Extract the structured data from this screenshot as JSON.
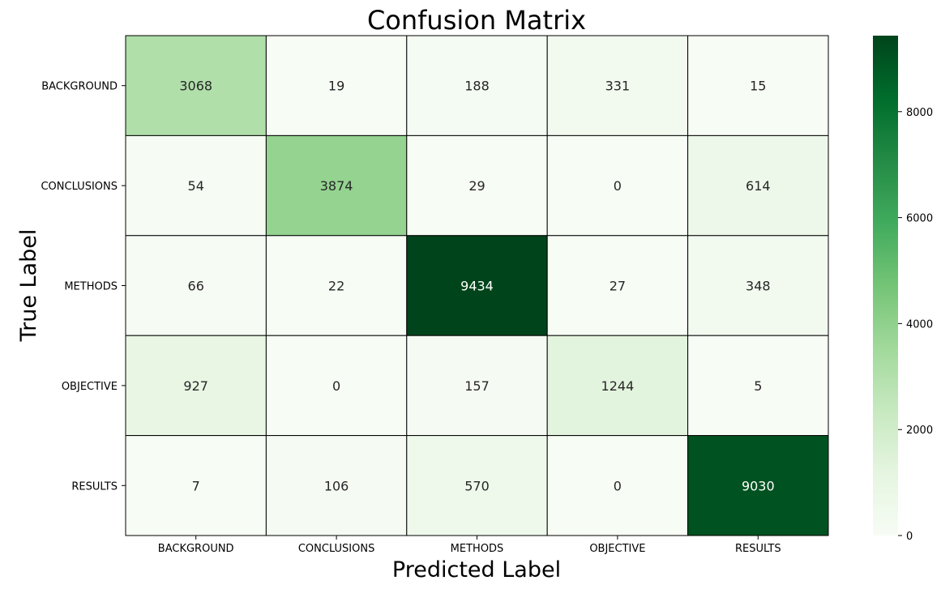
{
  "chart_data": {
    "type": "heatmap",
    "title": "Confusion Matrix",
    "xlabel": "Predicted Label",
    "ylabel": "True Label",
    "x_categories": [
      "BACKGROUND",
      "CONCLUSIONS",
      "METHODS",
      "OBJECTIVE",
      "RESULTS"
    ],
    "y_categories": [
      "BACKGROUND",
      "CONCLUSIONS",
      "METHODS",
      "OBJECTIVE",
      "RESULTS"
    ],
    "values": [
      [
        3068,
        19,
        188,
        331,
        15
      ],
      [
        54,
        3874,
        29,
        0,
        614
      ],
      [
        66,
        22,
        9434,
        27,
        348
      ],
      [
        927,
        0,
        157,
        1244,
        5
      ],
      [
        7,
        106,
        570,
        0,
        9030
      ]
    ],
    "colormap": "Greens",
    "vmin": 0,
    "vmax": 9434,
    "colorbar_ticks": [
      0,
      2000,
      4000,
      6000,
      8000
    ],
    "cell_border_color": "#000000"
  }
}
